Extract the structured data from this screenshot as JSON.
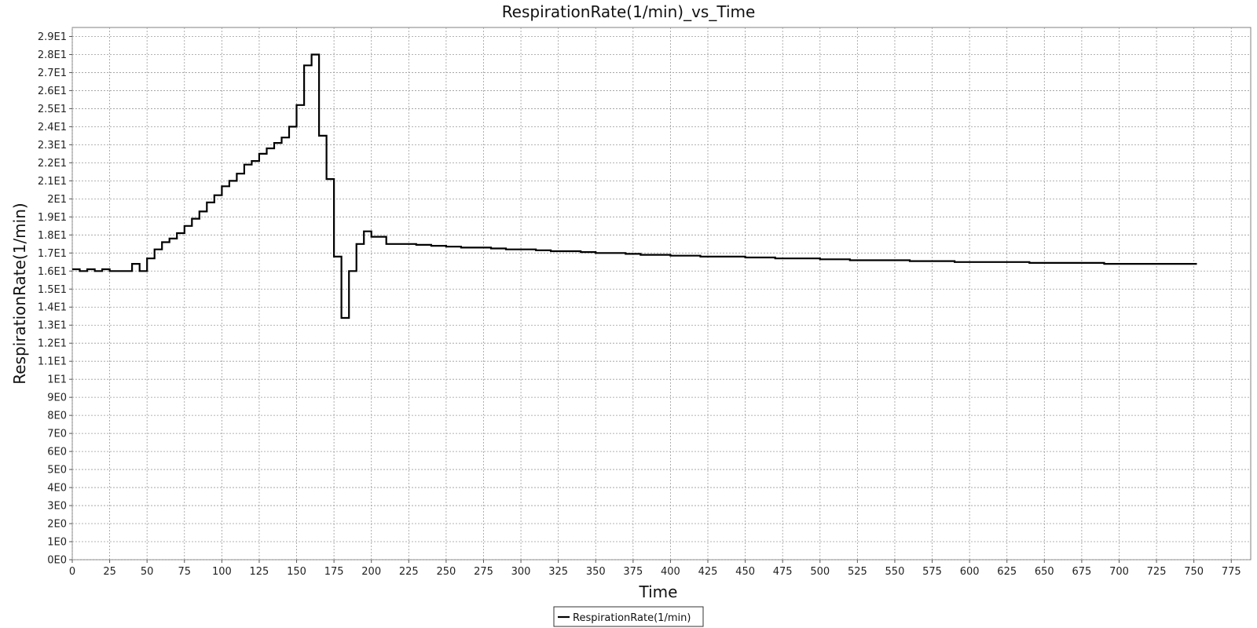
{
  "chart_data": {
    "type": "line",
    "title": "RespirationRate(1/min)_vs_Time",
    "xlabel": "Time",
    "ylabel": "RespirationRate(1/min)",
    "xlim": [
      0,
      788
    ],
    "ylim": [
      0,
      29.5
    ],
    "x_ticks": [
      0,
      25,
      50,
      75,
      100,
      125,
      150,
      175,
      200,
      225,
      250,
      275,
      300,
      325,
      350,
      375,
      400,
      425,
      450,
      475,
      500,
      525,
      550,
      575,
      600,
      625,
      650,
      675,
      700,
      725,
      750,
      775
    ],
    "x_tick_labels": [
      "0",
      "25",
      "50",
      "75",
      "100",
      "125",
      "150",
      "175",
      "200",
      "225",
      "250",
      "275",
      "300",
      "325",
      "350",
      "375",
      "400",
      "425",
      "450",
      "475",
      "500",
      "525",
      "550",
      "575",
      "600",
      "625",
      "650",
      "675",
      "700",
      "725",
      "750",
      "775"
    ],
    "y_ticks": [
      0,
      1,
      2,
      3,
      4,
      5,
      6,
      7,
      8,
      9,
      10,
      11,
      12,
      13,
      14,
      15,
      16,
      17,
      18,
      19,
      20,
      21,
      22,
      23,
      24,
      25,
      26,
      27,
      28,
      29
    ],
    "y_tick_labels": [
      "0E0",
      "1E0",
      "2E0",
      "3E0",
      "4E0",
      "5E0",
      "6E0",
      "7E0",
      "8E0",
      "9E0",
      "1E1",
      "1.1E1",
      "1.2E1",
      "1.3E1",
      "1.4E1",
      "1.5E1",
      "1.6E1",
      "1.7E1",
      "1.8E1",
      "1.9E1",
      "2E1",
      "2.1E1",
      "2.2E1",
      "2.3E1",
      "2.4E1",
      "2.5E1",
      "2.6E1",
      "2.7E1",
      "2.8E1",
      "2.9E1"
    ],
    "grid": true,
    "step": true,
    "legend_position": "bottom-center",
    "series": [
      {
        "name": "RespirationRate(1/min)",
        "color": "#000000",
        "x": [
          0,
          5,
          10,
          15,
          20,
          25,
          30,
          35,
          40,
          45,
          50,
          55,
          60,
          65,
          70,
          75,
          80,
          85,
          90,
          95,
          100,
          105,
          110,
          115,
          120,
          125,
          130,
          135,
          140,
          145,
          150,
          155,
          160,
          165,
          170,
          175,
          180,
          185,
          190,
          195,
          200,
          210,
          220,
          230,
          240,
          250,
          260,
          270,
          280,
          290,
          300,
          310,
          320,
          330,
          340,
          350,
          360,
          370,
          380,
          390,
          400,
          410,
          420,
          430,
          440,
          450,
          460,
          470,
          480,
          490,
          500,
          510,
          520,
          530,
          540,
          550,
          560,
          570,
          580,
          590,
          600,
          610,
          620,
          630,
          640,
          650,
          660,
          670,
          680,
          690,
          700,
          710,
          720,
          730,
          740,
          750
        ],
        "values": [
          16.1,
          16.0,
          16.1,
          16.0,
          16.1,
          16.0,
          16.0,
          16.0,
          16.4,
          16.0,
          16.7,
          17.2,
          17.6,
          17.8,
          18.1,
          18.5,
          18.9,
          19.3,
          19.8,
          20.2,
          20.7,
          21.0,
          21.4,
          21.9,
          22.1,
          22.5,
          22.8,
          23.1,
          23.4,
          24.0,
          25.2,
          27.4,
          28.0,
          23.5,
          21.1,
          16.8,
          13.4,
          16.0,
          17.5,
          18.2,
          17.9,
          17.5,
          17.5,
          17.45,
          17.4,
          17.35,
          17.3,
          17.3,
          17.25,
          17.2,
          17.2,
          17.15,
          17.1,
          17.1,
          17.05,
          17.0,
          17.0,
          16.95,
          16.9,
          16.9,
          16.85,
          16.85,
          16.8,
          16.8,
          16.8,
          16.75,
          16.75,
          16.7,
          16.7,
          16.7,
          16.65,
          16.65,
          16.6,
          16.6,
          16.6,
          16.6,
          16.55,
          16.55,
          16.55,
          16.5,
          16.5,
          16.5,
          16.5,
          16.5,
          16.45,
          16.45,
          16.45,
          16.45,
          16.45,
          16.4,
          16.4,
          16.4,
          16.4,
          16.4,
          16.4,
          16.4
        ]
      }
    ]
  }
}
